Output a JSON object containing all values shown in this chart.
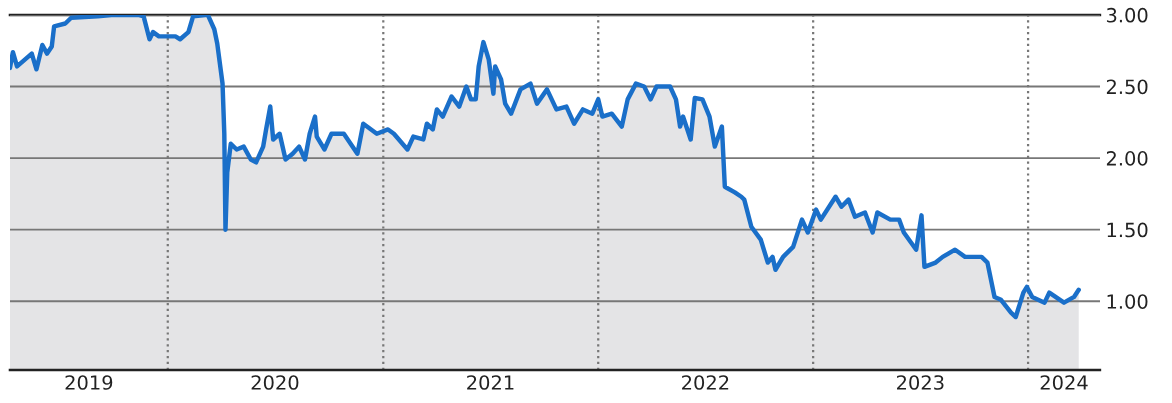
{
  "chart_data": {
    "type": "area",
    "x": [
      "2019-04-08",
      "2019-04-13",
      "2019-04-20",
      "2019-05-15",
      "2019-05-23",
      "2019-06-02",
      "2019-06-10",
      "2019-06-18",
      "2019-06-22",
      "2019-07-11",
      "2019-07-21",
      "2019-09-04",
      "2019-10-02",
      "2019-11-12",
      "2019-11-21",
      "2019-12-01",
      "2019-12-07",
      "2019-12-17",
      "2020-01-14",
      "2020-01-22",
      "2020-02-05",
      "2020-02-13",
      "2020-03-09",
      "2020-03-20",
      "2020-03-25",
      "2020-04-03",
      "2020-04-06",
      "2020-04-08",
      "2020-04-11",
      "2020-04-17",
      "2020-04-27",
      "2020-05-09",
      "2020-05-21",
      "2020-05-30",
      "2020-06-11",
      "2020-06-16",
      "2020-06-23",
      "2020-06-28",
      "2020-07-09",
      "2020-07-19",
      "2020-07-31",
      "2020-08-11",
      "2020-08-21",
      "2020-08-29",
      "2020-09-07",
      "2020-09-10",
      "2020-09-23",
      "2020-10-05",
      "2020-10-26",
      "2020-11-18",
      "2020-11-28",
      "2020-12-21",
      "2021-01-09",
      "2021-01-19",
      "2021-02-11",
      "2021-02-21",
      "2021-03-10",
      "2021-03-16",
      "2021-03-26",
      "2021-04-02",
      "2021-04-12",
      "2021-04-27",
      "2021-05-10",
      "2021-05-22",
      "2021-05-30",
      "2021-06-07",
      "2021-06-12",
      "2021-06-20",
      "2021-06-29",
      "2021-07-07",
      "2021-07-10",
      "2021-07-20",
      "2021-07-27",
      "2021-08-06",
      "2021-08-22",
      "2021-09-08",
      "2021-09-19",
      "2021-10-06",
      "2021-10-22",
      "2021-11-08",
      "2021-11-21",
      "2021-12-06",
      "2021-12-22",
      "2022-01-01",
      "2022-01-08",
      "2022-01-24",
      "2022-02-10",
      "2022-02-20",
      "2022-03-06",
      "2022-03-20",
      "2022-03-31",
      "2022-04-10",
      "2022-05-03",
      "2022-05-13",
      "2022-05-20",
      "2022-05-25",
      "2022-06-07",
      "2022-06-14",
      "2022-06-27",
      "2022-07-09",
      "2022-07-18",
      "2022-07-30",
      "2022-08-04",
      "2022-08-21",
      "2022-09-01",
      "2022-09-06",
      "2022-09-18",
      "2022-10-04",
      "2022-10-16",
      "2022-10-24",
      "2022-10-29",
      "2022-11-11",
      "2022-11-28",
      "2022-12-13",
      "2022-12-23",
      "2023-01-06",
      "2023-01-14",
      "2023-02-08",
      "2023-02-18",
      "2023-03-02",
      "2023-03-13",
      "2023-03-30",
      "2023-04-12",
      "2023-04-20",
      "2023-05-12",
      "2023-05-27",
      "2023-06-04",
      "2023-06-25",
      "2023-07-04",
      "2023-07-09",
      "2023-07-28",
      "2023-08-09",
      "2023-08-30",
      "2023-09-16",
      "2023-10-14",
      "2023-10-24",
      "2023-11-05",
      "2023-11-16",
      "2023-12-03",
      "2023-12-11",
      "2023-12-24",
      "2023-12-30",
      "2024-01-08",
      "2024-01-29",
      "2024-02-06",
      "2024-03-02",
      "2024-03-19",
      "2024-03-27"
    ],
    "series": [
      {
        "color": "#1a6fc9",
        "values": [
          2.63,
          2.74,
          2.64,
          2.73,
          2.62,
          2.79,
          2.73,
          2.78,
          2.92,
          2.94,
          2.98,
          2.99,
          3.0,
          3.0,
          2.99,
          2.83,
          2.88,
          2.85,
          2.85,
          2.83,
          2.88,
          2.99,
          3.0,
          2.9,
          2.8,
          2.52,
          2.17,
          1.5,
          1.9,
          2.1,
          2.06,
          2.08,
          1.99,
          1.97,
          2.08,
          2.2,
          2.36,
          2.13,
          2.17,
          1.99,
          2.03,
          2.08,
          1.99,
          2.17,
          2.29,
          2.15,
          2.06,
          2.17,
          2.17,
          2.03,
          2.24,
          2.17,
          2.2,
          2.17,
          2.06,
          2.15,
          2.13,
          2.24,
          2.2,
          2.34,
          2.29,
          2.43,
          2.36,
          2.5,
          2.41,
          2.41,
          2.64,
          2.81,
          2.69,
          2.45,
          2.64,
          2.55,
          2.38,
          2.31,
          2.48,
          2.52,
          2.38,
          2.48,
          2.34,
          2.36,
          2.24,
          2.34,
          2.31,
          2.41,
          2.29,
          2.31,
          2.22,
          2.41,
          2.52,
          2.5,
          2.41,
          2.5,
          2.5,
          2.41,
          2.22,
          2.29,
          2.13,
          2.42,
          2.41,
          2.29,
          2.08,
          2.22,
          1.8,
          1.76,
          1.73,
          1.71,
          1.52,
          1.43,
          1.27,
          1.31,
          1.22,
          1.31,
          1.38,
          1.57,
          1.48,
          1.64,
          1.57,
          1.73,
          1.66,
          1.71,
          1.59,
          1.62,
          1.48,
          1.62,
          1.57,
          1.57,
          1.48,
          1.36,
          1.6,
          1.24,
          1.27,
          1.31,
          1.36,
          1.31,
          1.31,
          1.27,
          1.03,
          1.01,
          0.92,
          0.89,
          1.06,
          1.1,
          1.03,
          0.99,
          1.06,
          0.99,
          1.03,
          1.08
        ]
      }
    ],
    "xlim": [
      "2019-04-08",
      "2024-05-02"
    ],
    "xticks": [
      {
        "value": "2019-08-20",
        "label": "2019"
      },
      {
        "value": "2020-07-01",
        "label": "2020"
      },
      {
        "value": "2021-07-02",
        "label": "2021"
      },
      {
        "value": "2022-07-02",
        "label": "2022"
      },
      {
        "value": "2023-07-02",
        "label": "2023"
      },
      {
        "value": "2024-03-02",
        "label": "2024"
      }
    ],
    "ylim": [
      0.52,
      3.0
    ],
    "yticks": [
      {
        "value": 1,
        "label": "1.00"
      },
      {
        "value": 1.5,
        "label": "1.50"
      },
      {
        "value": 2,
        "label": "2.00"
      },
      {
        "value": 2.5,
        "label": "2.50"
      },
      {
        "value": 3,
        "label": "3.00"
      }
    ],
    "ref_lines": [
      {
        "axis": "x",
        "value": "2020-01-01",
        "line_style": "dotted",
        "color": "#777777"
      },
      {
        "axis": "x",
        "value": "2021-01-01",
        "line_style": "dotted",
        "color": "#777777"
      },
      {
        "axis": "x",
        "value": "2022-01-01",
        "line_style": "dotted",
        "color": "#777777"
      },
      {
        "axis": "x",
        "value": "2023-01-01",
        "line_style": "dotted",
        "color": "#777777"
      },
      {
        "axis": "x",
        "value": "2024-01-01",
        "line_style": "dotted",
        "color": "#777777"
      }
    ],
    "grid": "y"
  }
}
